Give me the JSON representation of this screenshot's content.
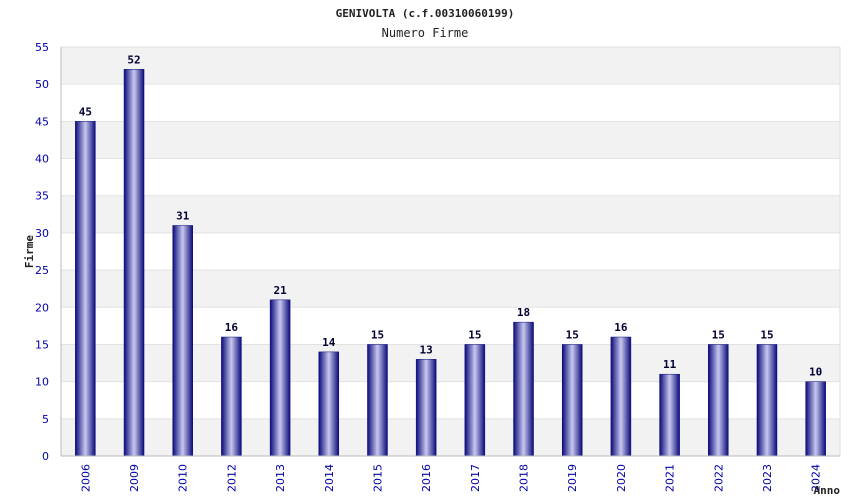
{
  "chart_data": {
    "type": "bar",
    "title": "GENIVOLTA (c.f.00310060199)",
    "subtitle": "Numero Firme",
    "xlabel": "Anno",
    "ylabel": "Firme",
    "categories": [
      "2006",
      "2009",
      "2010",
      "2012",
      "2013",
      "2014",
      "2015",
      "2016",
      "2017",
      "2018",
      "2019",
      "2020",
      "2021",
      "2022",
      "2023",
      "2024"
    ],
    "values": [
      45,
      52,
      31,
      16,
      21,
      14,
      15,
      13,
      15,
      18,
      15,
      16,
      11,
      15,
      15,
      10
    ],
    "ylim": [
      0,
      55
    ],
    "yticks": [
      0,
      5,
      10,
      15,
      20,
      25,
      30,
      35,
      40,
      45,
      50,
      55
    ],
    "grid": true,
    "colors": {
      "bar_dark": "#0a0a7a",
      "bar_light": "#c8c8f0",
      "band": "#f2f2f2",
      "tick_text": "#0000aa"
    }
  }
}
